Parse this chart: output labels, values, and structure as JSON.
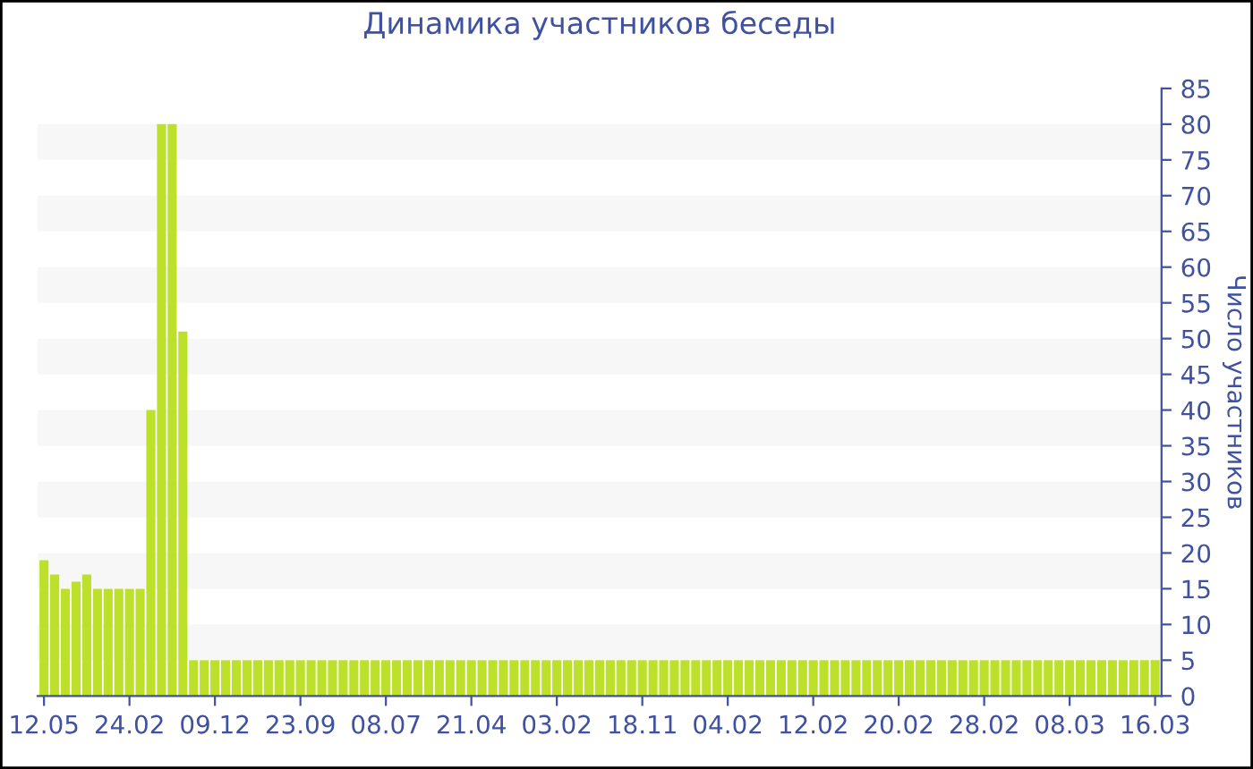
{
  "chart_data": {
    "type": "bar",
    "title": "Динамика участников беседы",
    "ylabel": "Число участников",
    "categories": [
      "12.05",
      null,
      null,
      null,
      null,
      null,
      null,
      null,
      "24.02",
      null,
      null,
      null,
      null,
      null,
      null,
      null,
      "09.12",
      null,
      null,
      null,
      null,
      null,
      null,
      null,
      "23.09",
      null,
      null,
      null,
      null,
      null,
      null,
      null,
      "08.07",
      null,
      null,
      null,
      null,
      null,
      null,
      null,
      "21.04",
      null,
      null,
      null,
      null,
      null,
      null,
      null,
      "03.02",
      null,
      null,
      null,
      null,
      null,
      null,
      null,
      "18.11",
      null,
      null,
      null,
      null,
      null,
      null,
      null,
      "04.02",
      null,
      null,
      null,
      null,
      null,
      null,
      null,
      "12.02",
      null,
      null,
      null,
      null,
      null,
      null,
      null,
      "20.02",
      null,
      null,
      null,
      null,
      null,
      null,
      null,
      "28.02",
      null,
      null,
      null,
      null,
      null,
      null,
      null,
      "08.03",
      null,
      null,
      null,
      null,
      null,
      null,
      null,
      "16.03"
    ],
    "values": [
      19,
      17,
      15,
      16,
      17,
      15,
      15,
      15,
      15,
      15,
      40,
      80,
      80,
      51,
      5,
      5,
      5,
      5,
      5,
      5,
      5,
      5,
      5,
      5,
      5,
      5,
      5,
      5,
      5,
      5,
      5,
      5,
      5,
      5,
      5,
      5,
      5,
      5,
      5,
      5,
      5,
      5,
      5,
      5,
      5,
      5,
      5,
      5,
      5,
      5,
      5,
      5,
      5,
      5,
      5,
      5,
      5,
      5,
      5,
      5,
      5,
      5,
      5,
      5,
      5,
      5,
      5,
      5,
      5,
      5,
      5,
      5,
      5,
      5,
      5,
      5,
      5,
      5,
      5,
      5,
      5,
      5,
      5,
      5,
      5,
      5,
      5,
      5,
      5,
      5,
      5,
      5,
      5,
      5,
      5,
      5,
      5,
      5,
      5,
      5,
      5,
      5,
      5,
      5,
      5
    ],
    "color": "#bde02a",
    "ylim": [
      0,
      85
    ],
    "yticks": [
      0,
      5,
      10,
      15,
      20,
      25,
      30,
      35,
      40,
      45,
      50,
      55,
      60,
      65,
      70,
      75,
      80,
      85
    ],
    "bands": [
      {
        "axis": "y",
        "from": 5,
        "to": 10,
        "color": "#f7f7f7"
      },
      {
        "axis": "y",
        "from": 15,
        "to": 20,
        "color": "#f7f7f7"
      },
      {
        "axis": "y",
        "from": 25,
        "to": 30,
        "color": "#f7f7f7"
      },
      {
        "axis": "y",
        "from": 35,
        "to": 40,
        "color": "#f7f7f7"
      },
      {
        "axis": "y",
        "from": 45,
        "to": 50,
        "color": "#f7f7f7"
      },
      {
        "axis": "y",
        "from": 55,
        "to": 60,
        "color": "#f7f7f7"
      },
      {
        "axis": "y",
        "from": 65,
        "to": 70,
        "color": "#f7f7f7"
      },
      {
        "axis": "y",
        "from": 75,
        "to": 80,
        "color": "#f7f7f7"
      }
    ],
    "grid": false,
    "legend": false
  }
}
